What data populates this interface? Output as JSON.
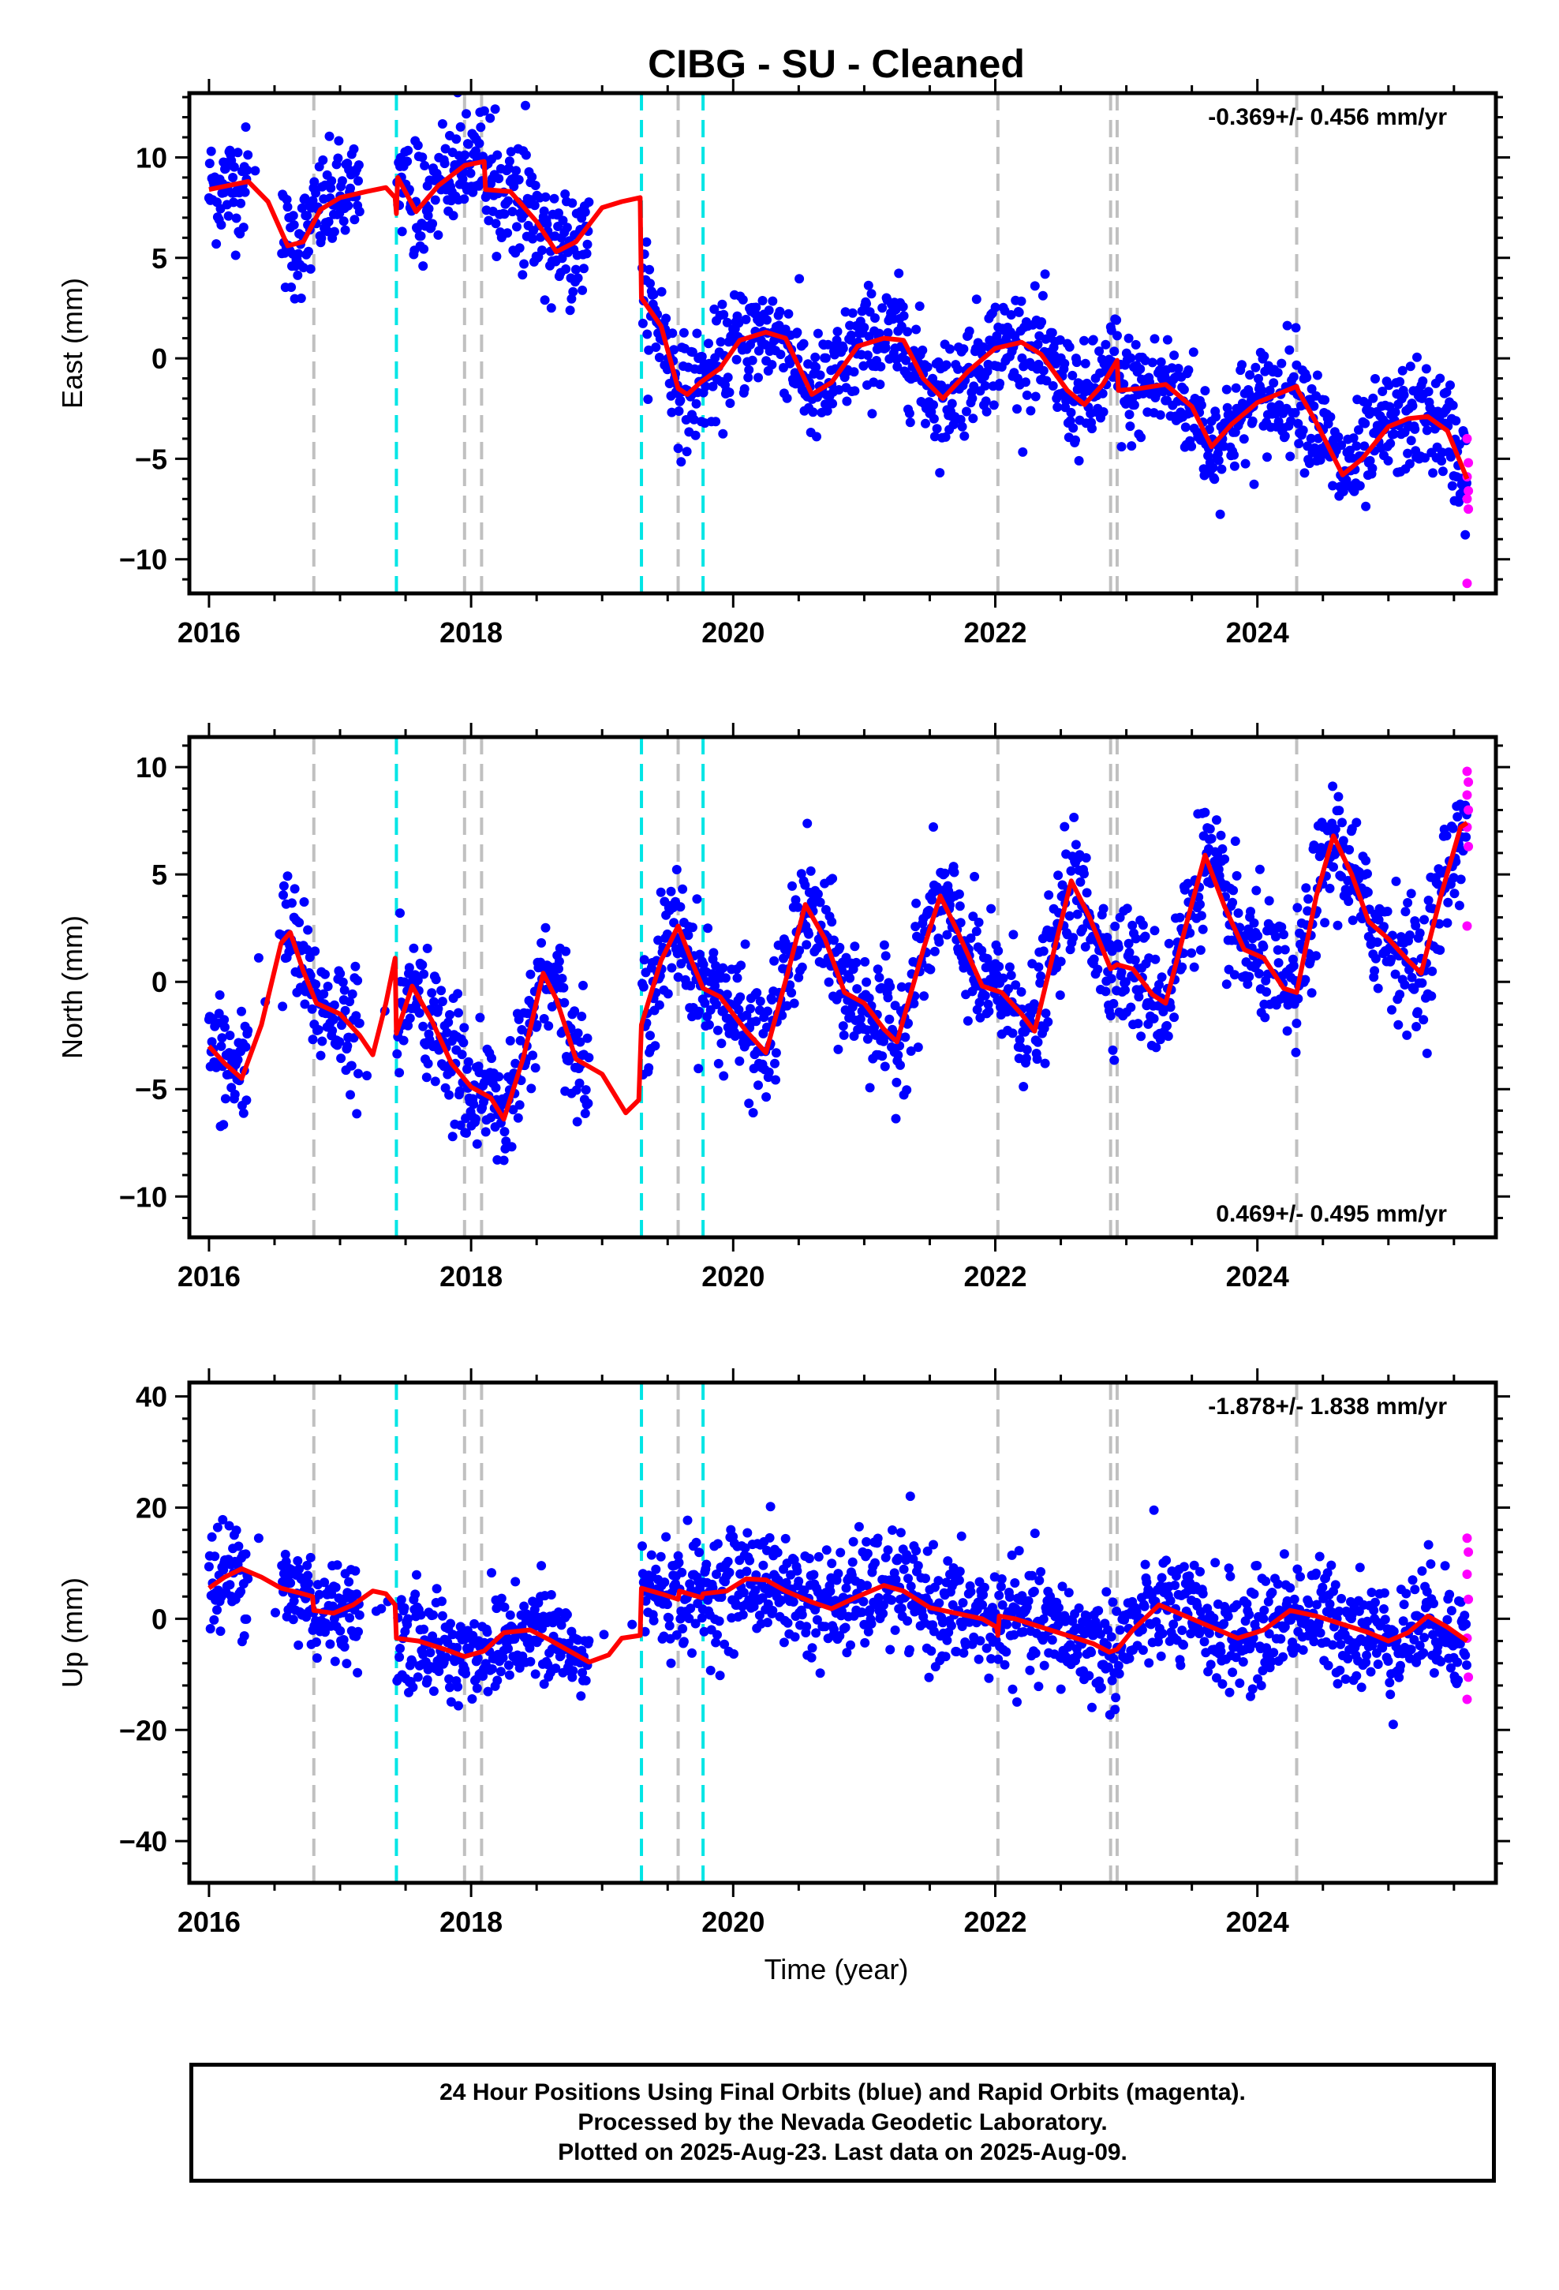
{
  "title": "CIBG  - SU - Cleaned",
  "xlabel": "Time (year)",
  "footer": {
    "line1": "24 Hour Positions Using Final Orbits (blue) and Rapid Orbits (magenta).",
    "line2": "Processed by the Nevada Geodetic Laboratory.",
    "line3": "Plotted on 2025-Aug-23. Last data on 2025-Aug-09."
  },
  "colors": {
    "final": "#0000ff",
    "rapid": "#ff00ff",
    "model": "#ff0000",
    "equipment_change": "#c0c0c0",
    "earthquake": "#00e5e5"
  },
  "chart_data": [
    {
      "type": "scatter",
      "ylabel": "East (mm)",
      "rate": "-0.369+/- 0.456 mm/yr",
      "rate_position": "top-right",
      "xlim": [
        2015.85,
        2025.82
      ],
      "ylim": [
        -11.7,
        13.2
      ],
      "xticks": [
        2016,
        2018,
        2020,
        2022,
        2024
      ],
      "yticks": [
        -10,
        -5,
        0,
        5,
        10
      ],
      "gray_lines": [
        2016.8,
        2017.95,
        2018.08,
        2019.58,
        2022.02,
        2022.88,
        2022.93,
        2024.3
      ],
      "cyan_lines": [
        2017.43,
        2019.3,
        2019.77
      ],
      "model": [
        [
          2016.0,
          8.4
        ],
        [
          2016.15,
          8.6
        ],
        [
          2016.3,
          8.8
        ],
        [
          2016.45,
          7.8
        ],
        [
          2016.6,
          5.6
        ],
        [
          2016.72,
          5.8
        ],
        [
          2016.85,
          7.4
        ],
        [
          2017.0,
          8.0
        ],
        [
          2017.2,
          8.3
        ],
        [
          2017.35,
          8.5
        ],
        [
          2017.42,
          8.0
        ],
        [
          2017.43,
          7.2
        ],
        [
          2017.44,
          9.0
        ],
        [
          2017.58,
          7.3
        ],
        [
          2017.75,
          8.6
        ],
        [
          2017.95,
          9.6
        ],
        [
          2018.1,
          9.8
        ],
        [
          2018.11,
          8.4
        ],
        [
          2018.3,
          8.3
        ],
        [
          2018.5,
          6.8
        ],
        [
          2018.65,
          5.3
        ],
        [
          2018.8,
          5.8
        ],
        [
          2019.0,
          7.5
        ],
        [
          2019.15,
          7.8
        ],
        [
          2019.29,
          8.0
        ],
        [
          2019.3,
          3.0
        ],
        [
          2019.45,
          1.6
        ],
        [
          2019.58,
          -1.5
        ],
        [
          2019.65,
          -1.8
        ],
        [
          2019.75,
          -1.2
        ],
        [
          2019.9,
          -0.5
        ],
        [
          2020.05,
          0.9
        ],
        [
          2020.25,
          1.3
        ],
        [
          2020.4,
          1.0
        ],
        [
          2020.6,
          -1.8
        ],
        [
          2020.75,
          -1.2
        ],
        [
          2020.95,
          0.6
        ],
        [
          2021.15,
          1.0
        ],
        [
          2021.3,
          0.9
        ],
        [
          2021.45,
          -1.0
        ],
        [
          2021.6,
          -2.0
        ],
        [
          2021.8,
          -0.6
        ],
        [
          2022.0,
          0.5
        ],
        [
          2022.2,
          0.8
        ],
        [
          2022.35,
          0.2
        ],
        [
          2022.55,
          -1.6
        ],
        [
          2022.68,
          -2.3
        ],
        [
          2022.82,
          -1.3
        ],
        [
          2022.93,
          -0.1
        ],
        [
          2022.94,
          -1.6
        ],
        [
          2023.1,
          -1.5
        ],
        [
          2023.3,
          -1.3
        ],
        [
          2023.5,
          -2.4
        ],
        [
          2023.65,
          -4.4
        ],
        [
          2023.8,
          -3.3
        ],
        [
          2024.0,
          -2.2
        ],
        [
          2024.15,
          -1.8
        ],
        [
          2024.3,
          -1.4
        ],
        [
          2024.31,
          -1.6
        ],
        [
          2024.45,
          -3.2
        ],
        [
          2024.65,
          -5.8
        ],
        [
          2024.8,
          -5.0
        ],
        [
          2025.0,
          -3.4
        ],
        [
          2025.15,
          -3.0
        ],
        [
          2025.3,
          -2.9
        ],
        [
          2025.45,
          -3.6
        ],
        [
          2025.6,
          -6.0
        ]
      ],
      "x_range": [
        2016.0,
        2025.6
      ],
      "rapid_x": [
        2025.6,
        2025.61
      ],
      "rapid_y": [
        -4.0,
        -5.2,
        -5.9,
        -6.6,
        -7.0,
        -7.5,
        -11.2
      ]
    },
    {
      "type": "scatter",
      "ylabel": "North (mm)",
      "rate": "0.469+/- 0.495 mm/yr",
      "rate_position": "bottom-right",
      "xlim": [
        2015.85,
        2025.82
      ],
      "ylim": [
        -11.9,
        11.4
      ],
      "xticks": [
        2016,
        2018,
        2020,
        2022,
        2024
      ],
      "yticks": [
        -10,
        -5,
        0,
        5,
        10
      ],
      "gray_lines": [
        2016.8,
        2017.95,
        2018.08,
        2019.58,
        2022.02,
        2022.88,
        2022.93,
        2024.3
      ],
      "cyan_lines": [
        2017.43,
        2019.3,
        2019.77
      ],
      "model": [
        [
          2016.0,
          -3.0
        ],
        [
          2016.12,
          -3.8
        ],
        [
          2016.25,
          -4.5
        ],
        [
          2016.4,
          -2.0
        ],
        [
          2016.55,
          1.8
        ],
        [
          2016.62,
          2.3
        ],
        [
          2016.72,
          0.5
        ],
        [
          2016.82,
          -1.0
        ],
        [
          2017.0,
          -1.5
        ],
        [
          2017.15,
          -2.5
        ],
        [
          2017.25,
          -3.4
        ],
        [
          2017.35,
          -1.0
        ],
        [
          2017.42,
          1.1
        ],
        [
          2017.43,
          -2.4
        ],
        [
          2017.55,
          -0.2
        ],
        [
          2017.7,
          -1.8
        ],
        [
          2017.85,
          -3.8
        ],
        [
          2018.0,
          -4.9
        ],
        [
          2018.15,
          -5.4
        ],
        [
          2018.25,
          -6.4
        ],
        [
          2018.4,
          -3.5
        ],
        [
          2018.55,
          0.4
        ],
        [
          2018.65,
          -0.8
        ],
        [
          2018.8,
          -3.6
        ],
        [
          2019.0,
          -4.3
        ],
        [
          2019.18,
          -6.1
        ],
        [
          2019.28,
          -5.5
        ],
        [
          2019.3,
          -2.0
        ],
        [
          2019.45,
          1.0
        ],
        [
          2019.58,
          2.6
        ],
        [
          2019.68,
          1.0
        ],
        [
          2019.77,
          -0.3
        ],
        [
          2019.9,
          -0.7
        ],
        [
          2020.1,
          -2.3
        ],
        [
          2020.25,
          -3.3
        ],
        [
          2020.42,
          0.5
        ],
        [
          2020.55,
          3.6
        ],
        [
          2020.7,
          2.0
        ],
        [
          2020.85,
          -0.5
        ],
        [
          2021.0,
          -1.0
        ],
        [
          2021.15,
          -2.2
        ],
        [
          2021.25,
          -2.8
        ],
        [
          2021.45,
          1.5
        ],
        [
          2021.58,
          4.0
        ],
        [
          2021.7,
          2.5
        ],
        [
          2021.9,
          -0.2
        ],
        [
          2022.05,
          -0.5
        ],
        [
          2022.2,
          -1.5
        ],
        [
          2022.3,
          -2.3
        ],
        [
          2022.45,
          1.5
        ],
        [
          2022.58,
          4.7
        ],
        [
          2022.72,
          3.0
        ],
        [
          2022.88,
          0.6
        ],
        [
          2022.93,
          0.8
        ],
        [
          2023.05,
          0.6
        ],
        [
          2023.2,
          -0.6
        ],
        [
          2023.3,
          -1.0
        ],
        [
          2023.45,
          2.5
        ],
        [
          2023.6,
          5.9
        ],
        [
          2023.75,
          3.5
        ],
        [
          2023.9,
          1.5
        ],
        [
          2024.05,
          1.1
        ],
        [
          2024.2,
          -0.3
        ],
        [
          2024.3,
          -0.5
        ],
        [
          2024.45,
          4.0
        ],
        [
          2024.58,
          6.8
        ],
        [
          2024.72,
          5.0
        ],
        [
          2024.85,
          2.8
        ],
        [
          2025.0,
          2.0
        ],
        [
          2025.15,
          1.0
        ],
        [
          2025.25,
          0.4
        ],
        [
          2025.4,
          4.0
        ],
        [
          2025.55,
          7.2
        ],
        [
          2025.6,
          7.4
        ]
      ],
      "x_range": [
        2016.0,
        2025.6
      ],
      "rapid_x": [
        2025.6,
        2025.61
      ],
      "rapid_y": [
        2.6,
        6.3,
        7.2,
        8.0,
        8.7,
        9.3,
        9.8
      ]
    },
    {
      "type": "scatter",
      "ylabel": "Up (mm)",
      "rate": "-1.878+/- 1.838 mm/yr",
      "rate_position": "top-right",
      "xlim": [
        2015.85,
        2025.82
      ],
      "ylim": [
        -47.5,
        42.5
      ],
      "xticks": [
        2016,
        2018,
        2020,
        2022,
        2024
      ],
      "yticks": [
        -40,
        -20,
        0,
        20,
        40
      ],
      "gray_lines": [
        2016.8,
        2017.95,
        2018.08,
        2019.58,
        2022.02,
        2022.88,
        2022.93,
        2024.3
      ],
      "cyan_lines": [
        2017.43,
        2019.3,
        2019.77
      ],
      "model": [
        [
          2016.0,
          5.5
        ],
        [
          2016.12,
          7.5
        ],
        [
          2016.25,
          9.0
        ],
        [
          2016.4,
          7.5
        ],
        [
          2016.55,
          5.5
        ],
        [
          2016.7,
          4.6
        ],
        [
          2016.79,
          4.0
        ],
        [
          2016.8,
          1.5
        ],
        [
          2016.95,
          1.0
        ],
        [
          2017.1,
          2.5
        ],
        [
          2017.25,
          5.0
        ],
        [
          2017.35,
          4.5
        ],
        [
          2017.42,
          2.5
        ],
        [
          2017.43,
          -3.5
        ],
        [
          2017.6,
          -4.0
        ],
        [
          2017.8,
          -5.5
        ],
        [
          2017.95,
          -6.8
        ],
        [
          2018.1,
          -5.8
        ],
        [
          2018.25,
          -2.5
        ],
        [
          2018.45,
          -2.0
        ],
        [
          2018.6,
          -3.8
        ],
        [
          2018.9,
          -7.8
        ],
        [
          2019.05,
          -6.5
        ],
        [
          2019.15,
          -3.5
        ],
        [
          2019.29,
          -3.0
        ],
        [
          2019.3,
          5.5
        ],
        [
          2019.45,
          4.5
        ],
        [
          2019.58,
          3.5
        ],
        [
          2019.59,
          5.0
        ],
        [
          2019.76,
          3.8
        ],
        [
          2019.77,
          4.5
        ],
        [
          2019.95,
          5.0
        ],
        [
          2020.1,
          7.2
        ],
        [
          2020.25,
          7.0
        ],
        [
          2020.4,
          5.0
        ],
        [
          2020.6,
          3.0
        ],
        [
          2020.75,
          1.8
        ],
        [
          2020.95,
          4.0
        ],
        [
          2021.15,
          6.0
        ],
        [
          2021.3,
          5.0
        ],
        [
          2021.5,
          2.0
        ],
        [
          2021.7,
          1.0
        ],
        [
          2021.9,
          0.0
        ],
        [
          2022.01,
          -1.5
        ],
        [
          2022.02,
          -3.0
        ],
        [
          2022.03,
          0.5
        ],
        [
          2022.15,
          0.0
        ],
        [
          2022.35,
          -1.5
        ],
        [
          2022.55,
          -3.0
        ],
        [
          2022.75,
          -4.5
        ],
        [
          2022.87,
          -6.0
        ],
        [
          2022.93,
          -5.5
        ],
        [
          2023.05,
          -2.0
        ],
        [
          2023.25,
          2.5
        ],
        [
          2023.45,
          0.5
        ],
        [
          2023.65,
          -1.5
        ],
        [
          2023.85,
          -3.5
        ],
        [
          2024.05,
          -2.0
        ],
        [
          2024.25,
          1.5
        ],
        [
          2024.45,
          0.5
        ],
        [
          2024.65,
          -1.0
        ],
        [
          2024.85,
          -2.5
        ],
        [
          2025.0,
          -4.0
        ],
        [
          2025.15,
          -2.5
        ],
        [
          2025.3,
          0.5
        ],
        [
          2025.45,
          -1.5
        ],
        [
          2025.6,
          -4.0
        ]
      ],
      "x_range": [
        2016.0,
        2025.6
      ],
      "rapid_x": [
        2025.6,
        2025.61
      ],
      "rapid_y": [
        -14.5,
        -10.5,
        -3.5,
        3.5,
        8.0,
        12.0,
        14.5
      ]
    }
  ]
}
